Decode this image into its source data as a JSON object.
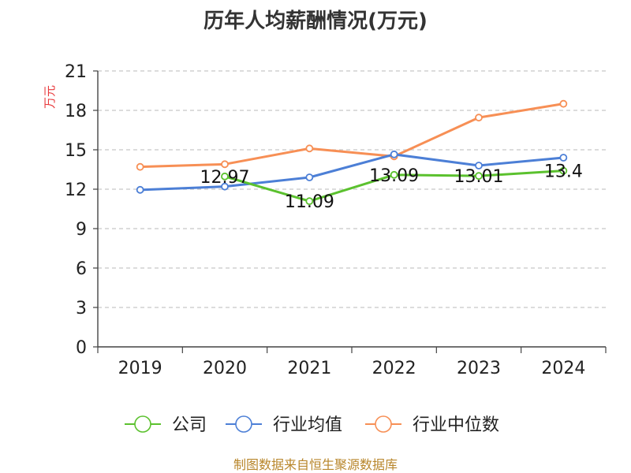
{
  "chart_data": {
    "type": "line",
    "title": "历年人均薪酬情况(万元)",
    "xlabel": "",
    "ylabel": "万元",
    "categories": [
      "2019",
      "2020",
      "2021",
      "2022",
      "2023",
      "2024"
    ],
    "ylim": [
      0,
      21
    ],
    "yticks": [
      0,
      3,
      6,
      9,
      12,
      15,
      18,
      21
    ],
    "grid": true,
    "legend_position": "bottom",
    "series": [
      {
        "name": "公司",
        "color": "#5bc12e",
        "values": [
          null,
          12.97,
          11.09,
          13.09,
          13.01,
          13.4
        ],
        "labels": [
          "",
          "12.97",
          "11.09",
          "13.09",
          "13.01",
          "13.4"
        ]
      },
      {
        "name": "行业均值",
        "color": "#4c7fd6",
        "values": [
          11.95,
          12.2,
          12.9,
          14.65,
          13.8,
          14.4
        ],
        "labels": []
      },
      {
        "name": "行业中位数",
        "color": "#f78f55",
        "values": [
          13.7,
          13.9,
          15.1,
          14.5,
          17.45,
          18.5
        ],
        "labels": []
      }
    ]
  },
  "source_text": "制图数据来自恒生聚源数据库"
}
